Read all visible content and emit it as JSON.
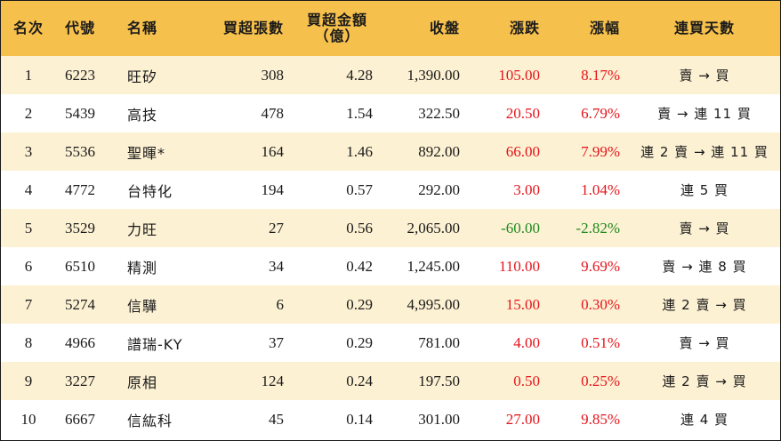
{
  "header": {
    "rank": "名次",
    "code": "代號",
    "name": "名稱",
    "net_buy_lots": "買超張數",
    "net_buy_amount_line1": "買超金額",
    "net_buy_amount_line2": "（億）",
    "close": "收盤",
    "change": "漲跌",
    "change_pct": "漲幅",
    "streak": "連買天數"
  },
  "colors": {
    "header_bg": "#f6c04c",
    "stripe_bg": "#fdf1d3",
    "up": "#e4151c",
    "down": "#1e8a1e"
  },
  "rows": [
    {
      "rank": "1",
      "code": "6223",
      "name": "旺矽",
      "lots": "308",
      "amount": "4.28",
      "close": "1,390.00",
      "change": "105.00",
      "pct": "8.17%",
      "dir": "up",
      "streak": "賣 → 買"
    },
    {
      "rank": "2",
      "code": "5439",
      "name": "高技",
      "lots": "478",
      "amount": "1.54",
      "close": "322.50",
      "change": "20.50",
      "pct": "6.79%",
      "dir": "up",
      "streak": "賣 → 連 11 買"
    },
    {
      "rank": "3",
      "code": "5536",
      "name": "聖暉*",
      "lots": "164",
      "amount": "1.46",
      "close": "892.00",
      "change": "66.00",
      "pct": "7.99%",
      "dir": "up",
      "streak": "連 2 賣 → 連 11 買"
    },
    {
      "rank": "4",
      "code": "4772",
      "name": "台特化",
      "lots": "194",
      "amount": "0.57",
      "close": "292.00",
      "change": "3.00",
      "pct": "1.04%",
      "dir": "up",
      "streak": "連 5 買"
    },
    {
      "rank": "5",
      "code": "3529",
      "name": "力旺",
      "lots": "27",
      "amount": "0.56",
      "close": "2,065.00",
      "change": "-60.00",
      "pct": "-2.82%",
      "dir": "down",
      "streak": "賣 → 買"
    },
    {
      "rank": "6",
      "code": "6510",
      "name": "精測",
      "lots": "34",
      "amount": "0.42",
      "close": "1,245.00",
      "change": "110.00",
      "pct": "9.69%",
      "dir": "up",
      "streak": "賣 → 連 8 買"
    },
    {
      "rank": "7",
      "code": "5274",
      "name": "信驊",
      "lots": "6",
      "amount": "0.29",
      "close": "4,995.00",
      "change": "15.00",
      "pct": "0.30%",
      "dir": "up",
      "streak": "連 2 賣 → 買"
    },
    {
      "rank": "8",
      "code": "4966",
      "name": "譜瑞-KY",
      "lots": "37",
      "amount": "0.29",
      "close": "781.00",
      "change": "4.00",
      "pct": "0.51%",
      "dir": "up",
      "streak": "賣 → 買"
    },
    {
      "rank": "9",
      "code": "3227",
      "name": "原相",
      "lots": "124",
      "amount": "0.24",
      "close": "197.50",
      "change": "0.50",
      "pct": "0.25%",
      "dir": "up",
      "streak": "連 2 賣 → 買"
    },
    {
      "rank": "10",
      "code": "6667",
      "name": "信紘科",
      "lots": "45",
      "amount": "0.14",
      "close": "301.00",
      "change": "27.00",
      "pct": "9.85%",
      "dir": "up",
      "streak": "連 4 買"
    }
  ]
}
